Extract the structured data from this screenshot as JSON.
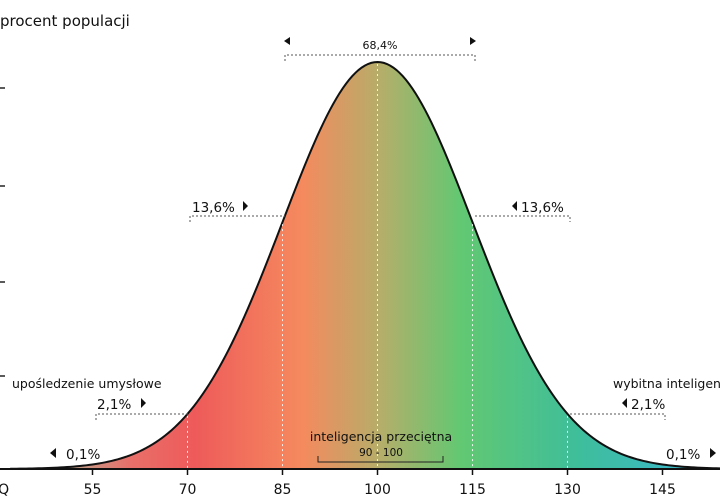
{
  "chart_data": {
    "type": "area",
    "title": "",
    "ylabel": "procent populacji",
    "xlabel": "IQ",
    "mean": 100,
    "sd": 15,
    "x_ticks": [
      55,
      70,
      85,
      100,
      115,
      130,
      145
    ],
    "xlim": [
      42,
      158
    ],
    "bands": [
      {
        "from": 85,
        "to": 115,
        "percent": "68,4%"
      },
      {
        "from": 70,
        "to": 85,
        "percent": "13,6%"
      },
      {
        "from": 115,
        "to": 130,
        "percent": "13,6%"
      },
      {
        "from": 55,
        "to": 70,
        "percent": "2,1%"
      },
      {
        "from": 130,
        "to": 145,
        "percent": "2,1%"
      },
      {
        "from": 42,
        "to": 55,
        "percent": "0,1%"
      },
      {
        "from": 145,
        "to": 158,
        "percent": "0,1%"
      }
    ],
    "category_labels": {
      "low": "upośledzenie umysłowe",
      "high": "wybitna inteligencja",
      "average": "inteligencja przeciętna",
      "average_range": "90 - 100"
    },
    "colors": {
      "red": "#ee5a5a",
      "orange": "#f58a5e",
      "olive": "#b4ae6a",
      "green": "#62c872",
      "teal": "#3ab8c8",
      "curve": "#111111"
    }
  }
}
